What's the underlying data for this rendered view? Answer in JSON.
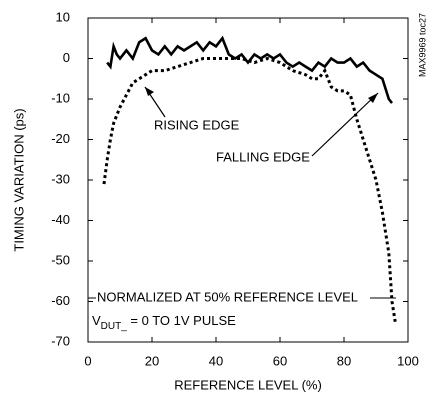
{
  "chart_data": {
    "type": "line",
    "xlabel": "REFERENCE LEVEL (%)",
    "ylabel": "TIMING VARIATION (ps)",
    "xlim": [
      0,
      100
    ],
    "xticks": [
      0,
      20,
      40,
      60,
      80,
      100
    ],
    "ylim": [
      -70,
      10
    ],
    "yticks": [
      10,
      0,
      -10,
      -20,
      -30,
      -40,
      -50,
      -60,
      -70
    ],
    "grid": false,
    "side_label": "MAX9969 toc27",
    "annotations": [
      "RISING EDGE",
      "FALLING EDGE"
    ],
    "note": {
      "line1": "NORMALIZED AT 50% REFERENCE LEVEL",
      "line2_main": "V",
      "line2_sub": "DUT_",
      "line2_rest": " = 0 TO 1V PULSE"
    },
    "series": [
      {
        "color": "#000000",
        "line_style": "solid",
        "x": [
          6,
          7,
          8,
          9,
          10,
          12,
          14,
          16,
          18,
          20,
          22,
          24,
          26,
          28,
          30,
          32,
          34,
          36,
          38,
          40,
          42,
          44,
          46,
          48,
          50,
          52,
          54,
          56,
          58,
          60,
          62,
          64,
          66,
          68,
          70,
          72,
          74,
          76,
          78,
          80,
          82,
          84,
          86,
          88,
          90,
          92,
          94,
          95
        ],
        "values": [
          -1,
          -2,
          3,
          1,
          0,
          2,
          0,
          4,
          5,
          2,
          1,
          3,
          1,
          3,
          2,
          3,
          4,
          2,
          4,
          3,
          5,
          1,
          0,
          1,
          -1,
          1,
          0,
          1,
          0,
          1,
          -1,
          -2,
          -1,
          -2,
          -3,
          -1,
          -2,
          0,
          -1,
          -1,
          0,
          -2,
          -1,
          -3,
          -4,
          -5,
          -10,
          -11
        ]
      },
      {
        "color": "#000000",
        "line_style": "dotted",
        "x": [
          5,
          6,
          7,
          8,
          10,
          12,
          14,
          16,
          18,
          20,
          24,
          28,
          32,
          36,
          40,
          44,
          48,
          52,
          56,
          60,
          64,
          68,
          70,
          72,
          74,
          76,
          78,
          80,
          82,
          84,
          86,
          88,
          90,
          92,
          94,
          95,
          96
        ],
        "values": [
          -31,
          -25,
          -20,
          -16,
          -12,
          -9,
          -6,
          -5,
          -4,
          -3,
          -3,
          -2,
          -1,
          0,
          0,
          0,
          0,
          -1,
          0,
          -1,
          -3,
          -4,
          -5,
          -5,
          -3,
          -7,
          -8,
          -8,
          -9,
          -15,
          -20,
          -25,
          -30,
          -38,
          -48,
          -60,
          -65
        ]
      }
    ]
  }
}
